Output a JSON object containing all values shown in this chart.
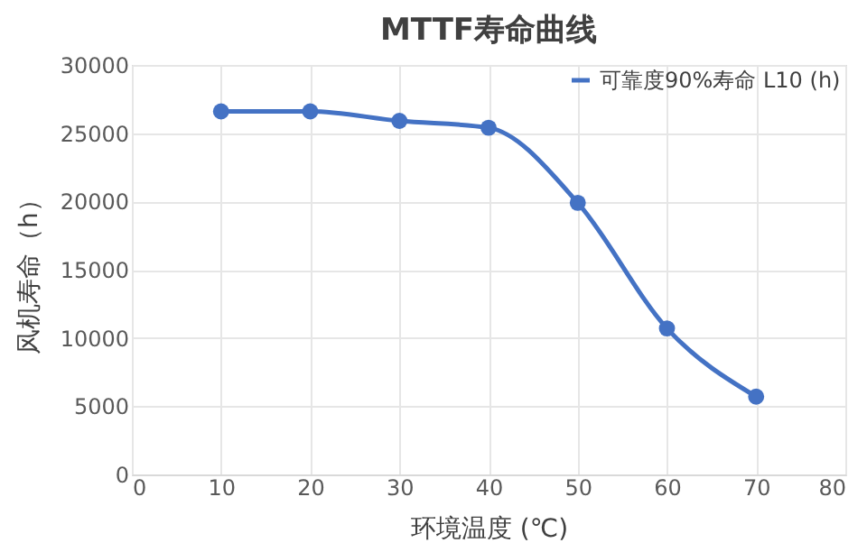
{
  "chart_data": {
    "type": "line",
    "title": "MTTF寿命曲线",
    "xlabel": "环境温度 (℃)",
    "ylabel": "风机寿命（h）",
    "x": [
      10,
      20,
      30,
      40,
      50,
      60,
      70
    ],
    "series": [
      {
        "name": "可靠度90%寿命 L10 (h)",
        "color": "#4472c4",
        "values": [
          26600,
          26600,
          25900,
          25400,
          19900,
          10700,
          5700
        ]
      }
    ],
    "xlim": [
      0,
      80
    ],
    "xticks": [
      0,
      10,
      20,
      30,
      40,
      50,
      60,
      70,
      80
    ],
    "ylim": [
      0,
      30000
    ],
    "yticks": [
      0,
      5000,
      10000,
      15000,
      20000,
      25000,
      30000
    ],
    "grid": true,
    "legend": "top right",
    "marker": "circle",
    "line_style": "solid"
  }
}
